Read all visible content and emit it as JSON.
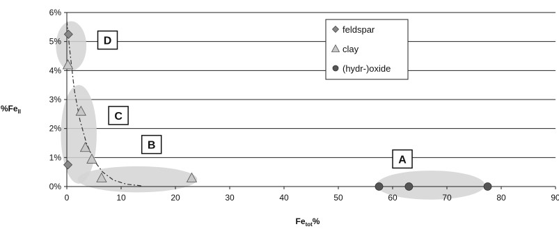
{
  "chart_data": {
    "type": "scatter",
    "ylabel_main": "%Fe",
    "ylabel_sub": "II",
    "xlabel_main": "Fe",
    "xlabel_sub": "tot",
    "xlabel_suffix": "%",
    "xlim": [
      0,
      90
    ],
    "ylim": [
      0,
      6
    ],
    "x_ticks": [
      "0",
      "10",
      "20",
      "30",
      "40",
      "50",
      "60",
      "70",
      "80",
      "90"
    ],
    "y_ticks": [
      "0%",
      "1%",
      "2%",
      "3%",
      "4%",
      "5%",
      "6%"
    ],
    "grid": "horizontal",
    "legend_position": "top-right",
    "series": [
      {
        "name": "feldspar",
        "marker": "diamond",
        "color": "#888888",
        "points": [
          [
            0.3,
            5.25
          ],
          [
            0.2,
            0.75
          ]
        ]
      },
      {
        "name": "clay",
        "marker": "triangle",
        "color": "#c8c8c8",
        "points": [
          [
            0.2,
            4.2
          ],
          [
            2.6,
            2.6
          ],
          [
            3.4,
            1.35
          ],
          [
            4.6,
            0.95
          ],
          [
            6.4,
            0.3
          ],
          [
            23,
            0.3
          ]
        ]
      },
      {
        "name": "(hydr-)oxide",
        "marker": "circle",
        "color": "#555555",
        "points": [
          [
            57.5,
            0.0
          ],
          [
            63.0,
            0.0
          ],
          [
            77.5,
            0.0
          ]
        ]
      }
    ],
    "trendline": [
      [
        0.0,
        5.7
      ],
      [
        0.6,
        4.6
      ],
      [
        1.4,
        3.3
      ],
      [
        2.4,
        2.3
      ],
      [
        3.6,
        1.5
      ],
      [
        5.0,
        0.9
      ],
      [
        6.6,
        0.5
      ],
      [
        8.6,
        0.22
      ],
      [
        11,
        0.08
      ],
      [
        14,
        0.02
      ]
    ],
    "groups": [
      {
        "label": "A",
        "cx": 67,
        "cy": 0.05,
        "rx": 10,
        "ry": 0.5,
        "box_x": 61.8,
        "box_y": 0.95
      },
      {
        "label": "B",
        "cx": 13,
        "cy": 0.25,
        "rx": 11,
        "ry": 0.45,
        "box_x": 15.6,
        "box_y": 1.45
      },
      {
        "label": "C",
        "cx": 2.2,
        "cy": 1.8,
        "rx": 3.3,
        "ry": 1.7,
        "box_x": 9.5,
        "box_y": 2.45
      },
      {
        "label": "D",
        "cx": 0.8,
        "cy": 4.85,
        "rx": 2.8,
        "ry": 0.85,
        "box_x": 7.5,
        "box_y": 5.05
      }
    ]
  }
}
